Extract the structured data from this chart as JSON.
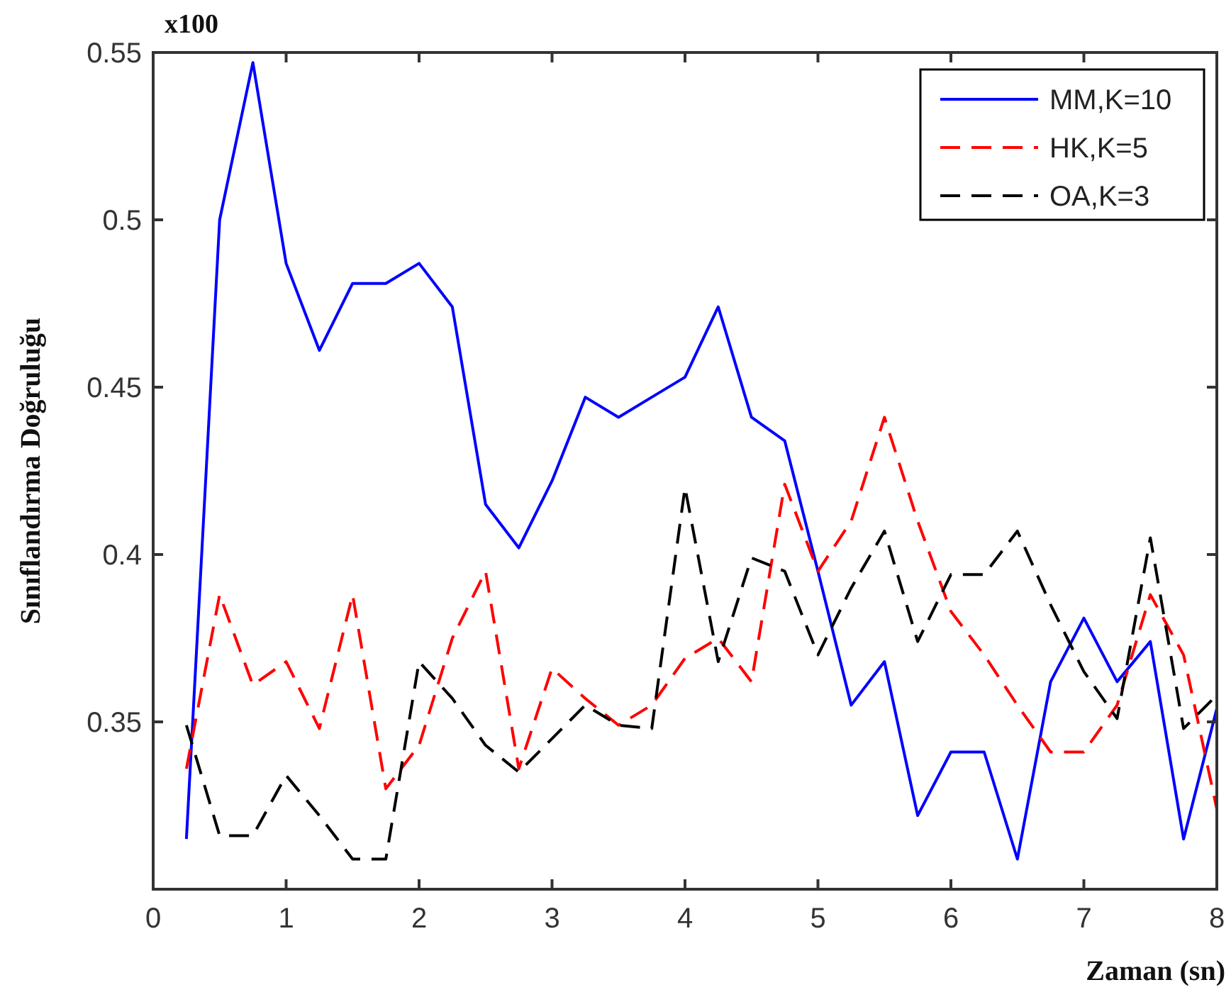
{
  "chart_data": {
    "type": "line",
    "xlabel": "Zaman (sn)",
    "ylabel": "Sınıflandırma Doğruluğu",
    "annotations": [
      "x100"
    ],
    "x": [
      0.25,
      0.5,
      0.75,
      1,
      1.25,
      1.5,
      1.75,
      2,
      2.25,
      2.5,
      2.75,
      3,
      3.25,
      3.5,
      3.75,
      4,
      4.25,
      4.5,
      4.75,
      5,
      5.25,
      5.5,
      5.75,
      6,
      6.25,
      6.5,
      6.75,
      7,
      7.25,
      7.5,
      7.75,
      8
    ],
    "series": [
      {
        "name": "MM,K=10",
        "color": "#0000ff",
        "line_style": "solid",
        "values": [
          0.315,
          0.5,
          0.547,
          0.487,
          0.461,
          0.481,
          0.481,
          0.487,
          0.474,
          0.415,
          0.402,
          0.422,
          0.447,
          0.441,
          0.447,
          0.453,
          0.474,
          0.441,
          0.434,
          0.395,
          0.355,
          0.368,
          0.322,
          0.341,
          0.341,
          0.309,
          0.362,
          0.381,
          0.362,
          0.374,
          0.315,
          0.354
        ]
      },
      {
        "name": "HK,K=5",
        "color": "#ff0000",
        "line_style": "dashed",
        "values": [
          0.336,
          0.388,
          0.361,
          0.368,
          0.348,
          0.388,
          0.33,
          0.343,
          0.375,
          0.395,
          0.336,
          0.366,
          0.357,
          0.349,
          0.355,
          0.369,
          0.375,
          0.362,
          0.421,
          0.395,
          0.41,
          0.441,
          0.41,
          0.383,
          0.37,
          0.355,
          0.341,
          0.341,
          0.355,
          0.388,
          0.37,
          0.324
        ]
      },
      {
        "name": "OA,K=3",
        "color": "#000000",
        "line_style": "dashed",
        "values": [
          0.349,
          0.316,
          0.316,
          0.334,
          0.322,
          0.309,
          0.309,
          0.368,
          0.357,
          0.343,
          0.335,
          0.345,
          0.355,
          0.349,
          0.348,
          0.42,
          0.368,
          0.399,
          0.395,
          0.37,
          0.39,
          0.407,
          0.374,
          0.394,
          0.394,
          0.407,
          0.385,
          0.365,
          0.351,
          0.405,
          0.348,
          0.358
        ]
      }
    ],
    "xlim": [
      0,
      8
    ],
    "xticks": [
      0,
      1,
      2,
      3,
      4,
      5,
      6,
      7,
      8
    ],
    "ylim": [
      0.3,
      0.55
    ],
    "yticks": [
      0.35,
      0.4,
      0.45,
      0.5,
      0.55
    ],
    "grid": false,
    "legend": "top right",
    "marker": "none"
  }
}
